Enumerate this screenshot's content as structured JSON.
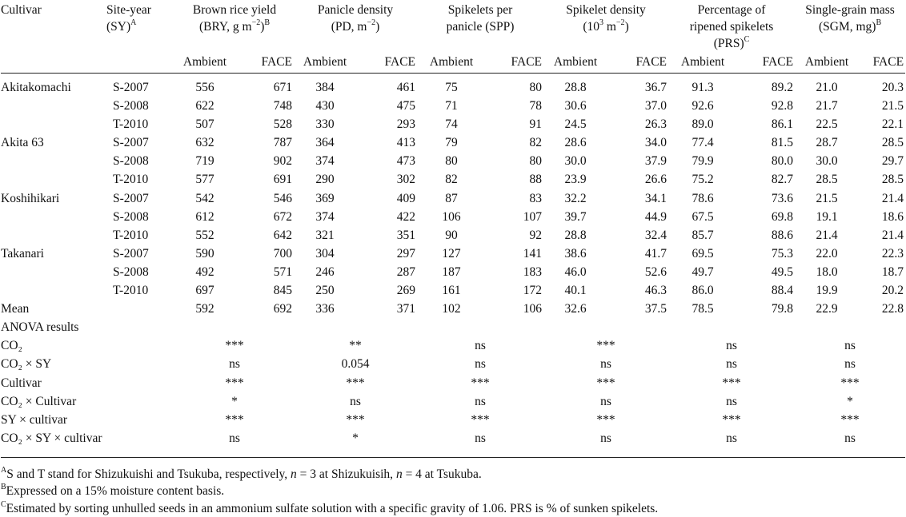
{
  "headers": {
    "cultivar": "Cultivar",
    "site_year_1": "Site-year",
    "site_year_2": "(SY)",
    "site_year_sup": "A",
    "bry_1": "Brown rice yield",
    "bry_2": "(BRY, g m",
    "bry_exp": "−2",
    "bry_close": ")",
    "bry_sup": "B",
    "pd_1": "Panicle density",
    "pd_2": "(PD, m",
    "pd_exp": "−2",
    "pd_close": ")",
    "spp_1": "Spikelets per",
    "spp_2": "panicle (SPP)",
    "sd_1": "Spikelet density",
    "sd_2": "(10",
    "sd_exp1": "3",
    "sd_mid": " m",
    "sd_exp2": "−2",
    "sd_close": ")",
    "prs_1": "Percentage of",
    "prs_2": "ripened spikelets",
    "prs_3": "(PRS)",
    "prs_sup": "C",
    "sgm_1": "Single-grain mass",
    "sgm_2": "(SGM, mg)",
    "sgm_sup": "B",
    "ambient": "Ambient",
    "face": "FACE"
  },
  "rows": [
    {
      "cultivar": "Akitakomachi",
      "sy": "S-2007",
      "v": [
        "556",
        "671",
        "384",
        "461",
        "75",
        "80",
        "28.8",
        "36.7",
        "91.3",
        "89.2",
        "21.0",
        "20.3"
      ]
    },
    {
      "cultivar": "",
      "sy": "S-2008",
      "v": [
        "622",
        "748",
        "430",
        "475",
        "71",
        "78",
        "30.6",
        "37.0",
        "92.6",
        "92.8",
        "21.7",
        "21.5"
      ]
    },
    {
      "cultivar": "",
      "sy": "T-2010",
      "v": [
        "507",
        "528",
        "330",
        "293",
        "74",
        "91",
        "24.5",
        "26.3",
        "89.0",
        "86.1",
        "22.5",
        "22.1"
      ]
    },
    {
      "cultivar": "Akita 63",
      "sy": "S-2007",
      "v": [
        "632",
        "787",
        "364",
        "413",
        "79",
        "82",
        "28.6",
        "34.0",
        "77.4",
        "81.5",
        "28.7",
        "28.5"
      ]
    },
    {
      "cultivar": "",
      "sy": "S-2008",
      "v": [
        "719",
        "902",
        "374",
        "473",
        "80",
        "80",
        "30.0",
        "37.9",
        "79.9",
        "80.0",
        "30.0",
        "29.7"
      ]
    },
    {
      "cultivar": "",
      "sy": "T-2010",
      "v": [
        "577",
        "691",
        "290",
        "302",
        "82",
        "88",
        "23.9",
        "26.6",
        "75.2",
        "82.7",
        "28.5",
        "28.5"
      ]
    },
    {
      "cultivar": "Koshihikari",
      "sy": "S-2007",
      "v": [
        "542",
        "546",
        "369",
        "409",
        "87",
        "83",
        "32.2",
        "34.1",
        "78.6",
        "73.6",
        "21.5",
        "21.4"
      ]
    },
    {
      "cultivar": "",
      "sy": "S-2008",
      "v": [
        "612",
        "672",
        "374",
        "422",
        "106",
        "107",
        "39.7",
        "44.9",
        "67.5",
        "69.8",
        "19.1",
        "18.6"
      ]
    },
    {
      "cultivar": "",
      "sy": "T-2010",
      "v": [
        "552",
        "642",
        "321",
        "351",
        "90",
        "92",
        "28.8",
        "32.4",
        "85.7",
        "88.6",
        "21.4",
        "21.4"
      ]
    },
    {
      "cultivar": "Takanari",
      "sy": "S-2007",
      "v": [
        "590",
        "700",
        "304",
        "297",
        "127",
        "141",
        "38.6",
        "41.7",
        "69.5",
        "75.3",
        "22.0",
        "22.3"
      ]
    },
    {
      "cultivar": "",
      "sy": "S-2008",
      "v": [
        "492",
        "571",
        "246",
        "287",
        "187",
        "183",
        "46.0",
        "52.6",
        "49.7",
        "49.5",
        "18.0",
        "18.7"
      ]
    },
    {
      "cultivar": "",
      "sy": "T-2010",
      "v": [
        "697",
        "845",
        "250",
        "269",
        "161",
        "172",
        "40.1",
        "46.3",
        "86.0",
        "88.4",
        "19.9",
        "20.2"
      ]
    },
    {
      "cultivar": "Mean",
      "sy": "",
      "v": [
        "592",
        "692",
        "336",
        "371",
        "102",
        "106",
        "32.6",
        "37.5",
        "78.5",
        "79.8",
        "22.9",
        "22.8"
      ]
    }
  ],
  "anova_title": "ANOVA results",
  "anova": [
    {
      "label": "CO₂",
      "v": [
        "***",
        "**",
        "ns",
        "***",
        "ns",
        "ns"
      ]
    },
    {
      "label": "CO₂ × SY",
      "v": [
        "ns",
        "0.054",
        "ns",
        "ns",
        "ns",
        "ns"
      ]
    },
    {
      "label": "Cultivar",
      "v": [
        "***",
        "***",
        "***",
        "***",
        "***",
        "***"
      ]
    },
    {
      "label": "CO₂ × Cultivar",
      "v": [
        "*",
        "ns",
        "ns",
        "ns",
        "ns",
        "*"
      ]
    },
    {
      "label": "SY × cultivar",
      "v": [
        "***",
        "***",
        "***",
        "***",
        "***",
        "***"
      ]
    },
    {
      "label": "CO₂ × SY × cultivar",
      "v": [
        "ns",
        "*",
        "ns",
        "ns",
        "ns",
        "ns"
      ]
    }
  ],
  "footnotes": {
    "a_mark": "A",
    "a_text_1": "S and T stand for Shizukuishi and Tsukuba, respectively, ",
    "a_n1": "n",
    "a_text_2": " = 3 at Shizukuisih, ",
    "a_n2": "n",
    "a_text_3": " = 4 at Tsukuba.",
    "b_mark": "B",
    "b_text": "Expressed on a 15% moisture content basis.",
    "c_mark": "C",
    "c_text": "Estimated by sorting unhulled seeds in an ammonium sulfate solution with a specific gravity of 1.06. PRS is % of sunken spikelets."
  }
}
